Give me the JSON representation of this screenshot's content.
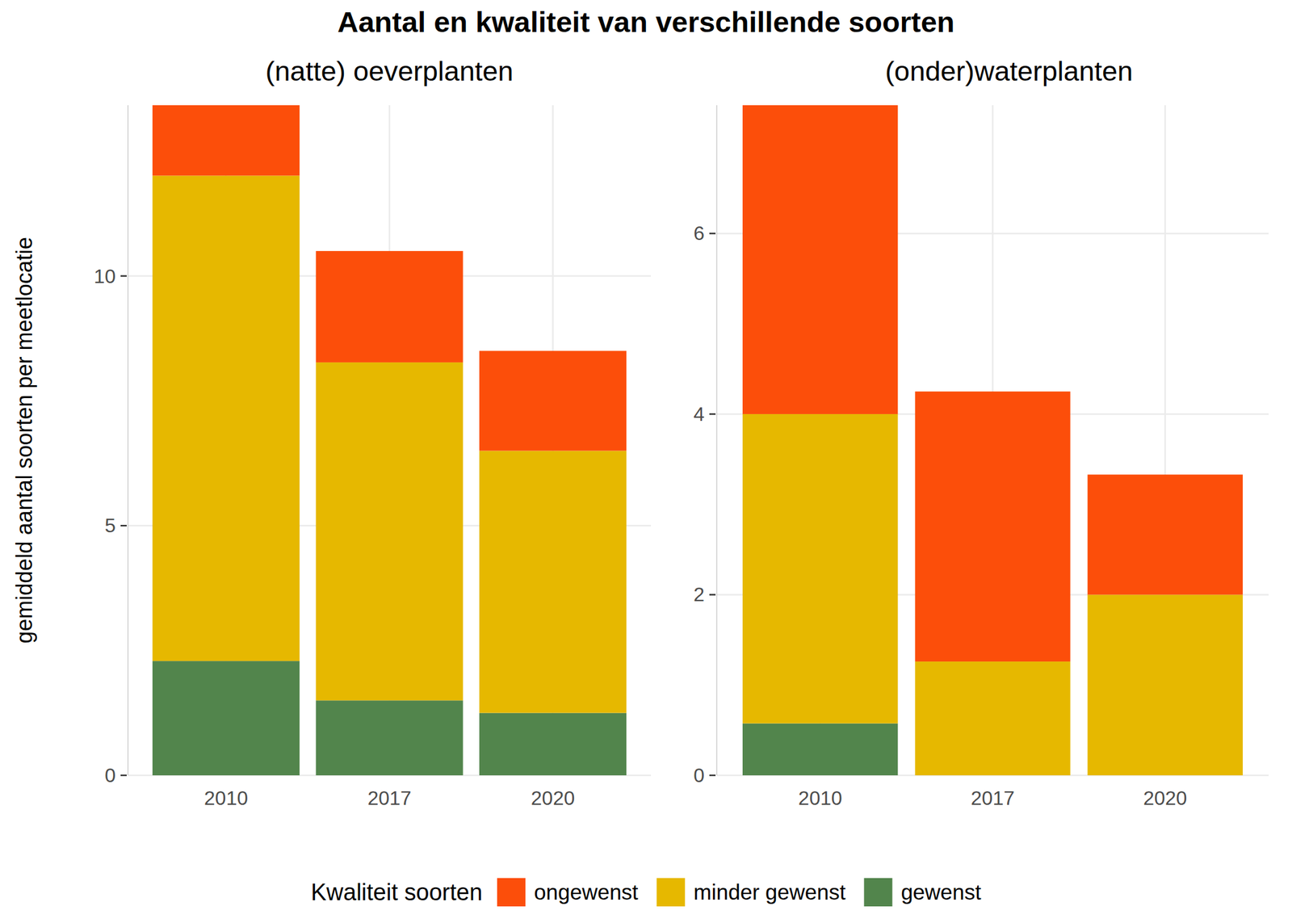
{
  "title": "Aantal en kwaliteit van verschillende soorten",
  "legend_title": "Kwaliteit soorten",
  "chart_data": [
    {
      "type": "bar",
      "stacked": true,
      "grid": true,
      "subtitle": "(natte) oeverplanten",
      "y_label": "gemiddeld aantal soorten per meetlocatie",
      "categories": [
        "2010",
        "2017",
        "2020"
      ],
      "series": [
        {
          "name": "ongewenst",
          "color": "#fc4e0a",
          "values": [
            1.41,
            2.23,
            2.0
          ]
        },
        {
          "name": "minder gewenst",
          "color": "#e6b800",
          "values": [
            9.72,
            6.77,
            5.25
          ]
        },
        {
          "name": "gewenst",
          "color": "#52854c",
          "values": [
            2.29,
            1.5,
            1.25
          ]
        }
      ],
      "ylim": [
        0,
        13.42
      ],
      "yticks": [
        0,
        5,
        10
      ]
    },
    {
      "type": "bar",
      "stacked": true,
      "grid": true,
      "subtitle": "(onder)waterplanten",
      "categories": [
        "2010",
        "2017",
        "2020"
      ],
      "series": [
        {
          "name": "ongewenst",
          "color": "#fc4e0a",
          "values": [
            3.42,
            2.99,
            1.33
          ]
        },
        {
          "name": "minder gewenst",
          "color": "#e6b800",
          "values": [
            3.425,
            1.26,
            2.0
          ]
        },
        {
          "name": "gewenst",
          "color": "#52854c",
          "values": [
            0.575,
            0,
            0
          ]
        }
      ],
      "ylim": [
        0,
        7.42
      ],
      "yticks": [
        0,
        2,
        4,
        6
      ]
    }
  ]
}
